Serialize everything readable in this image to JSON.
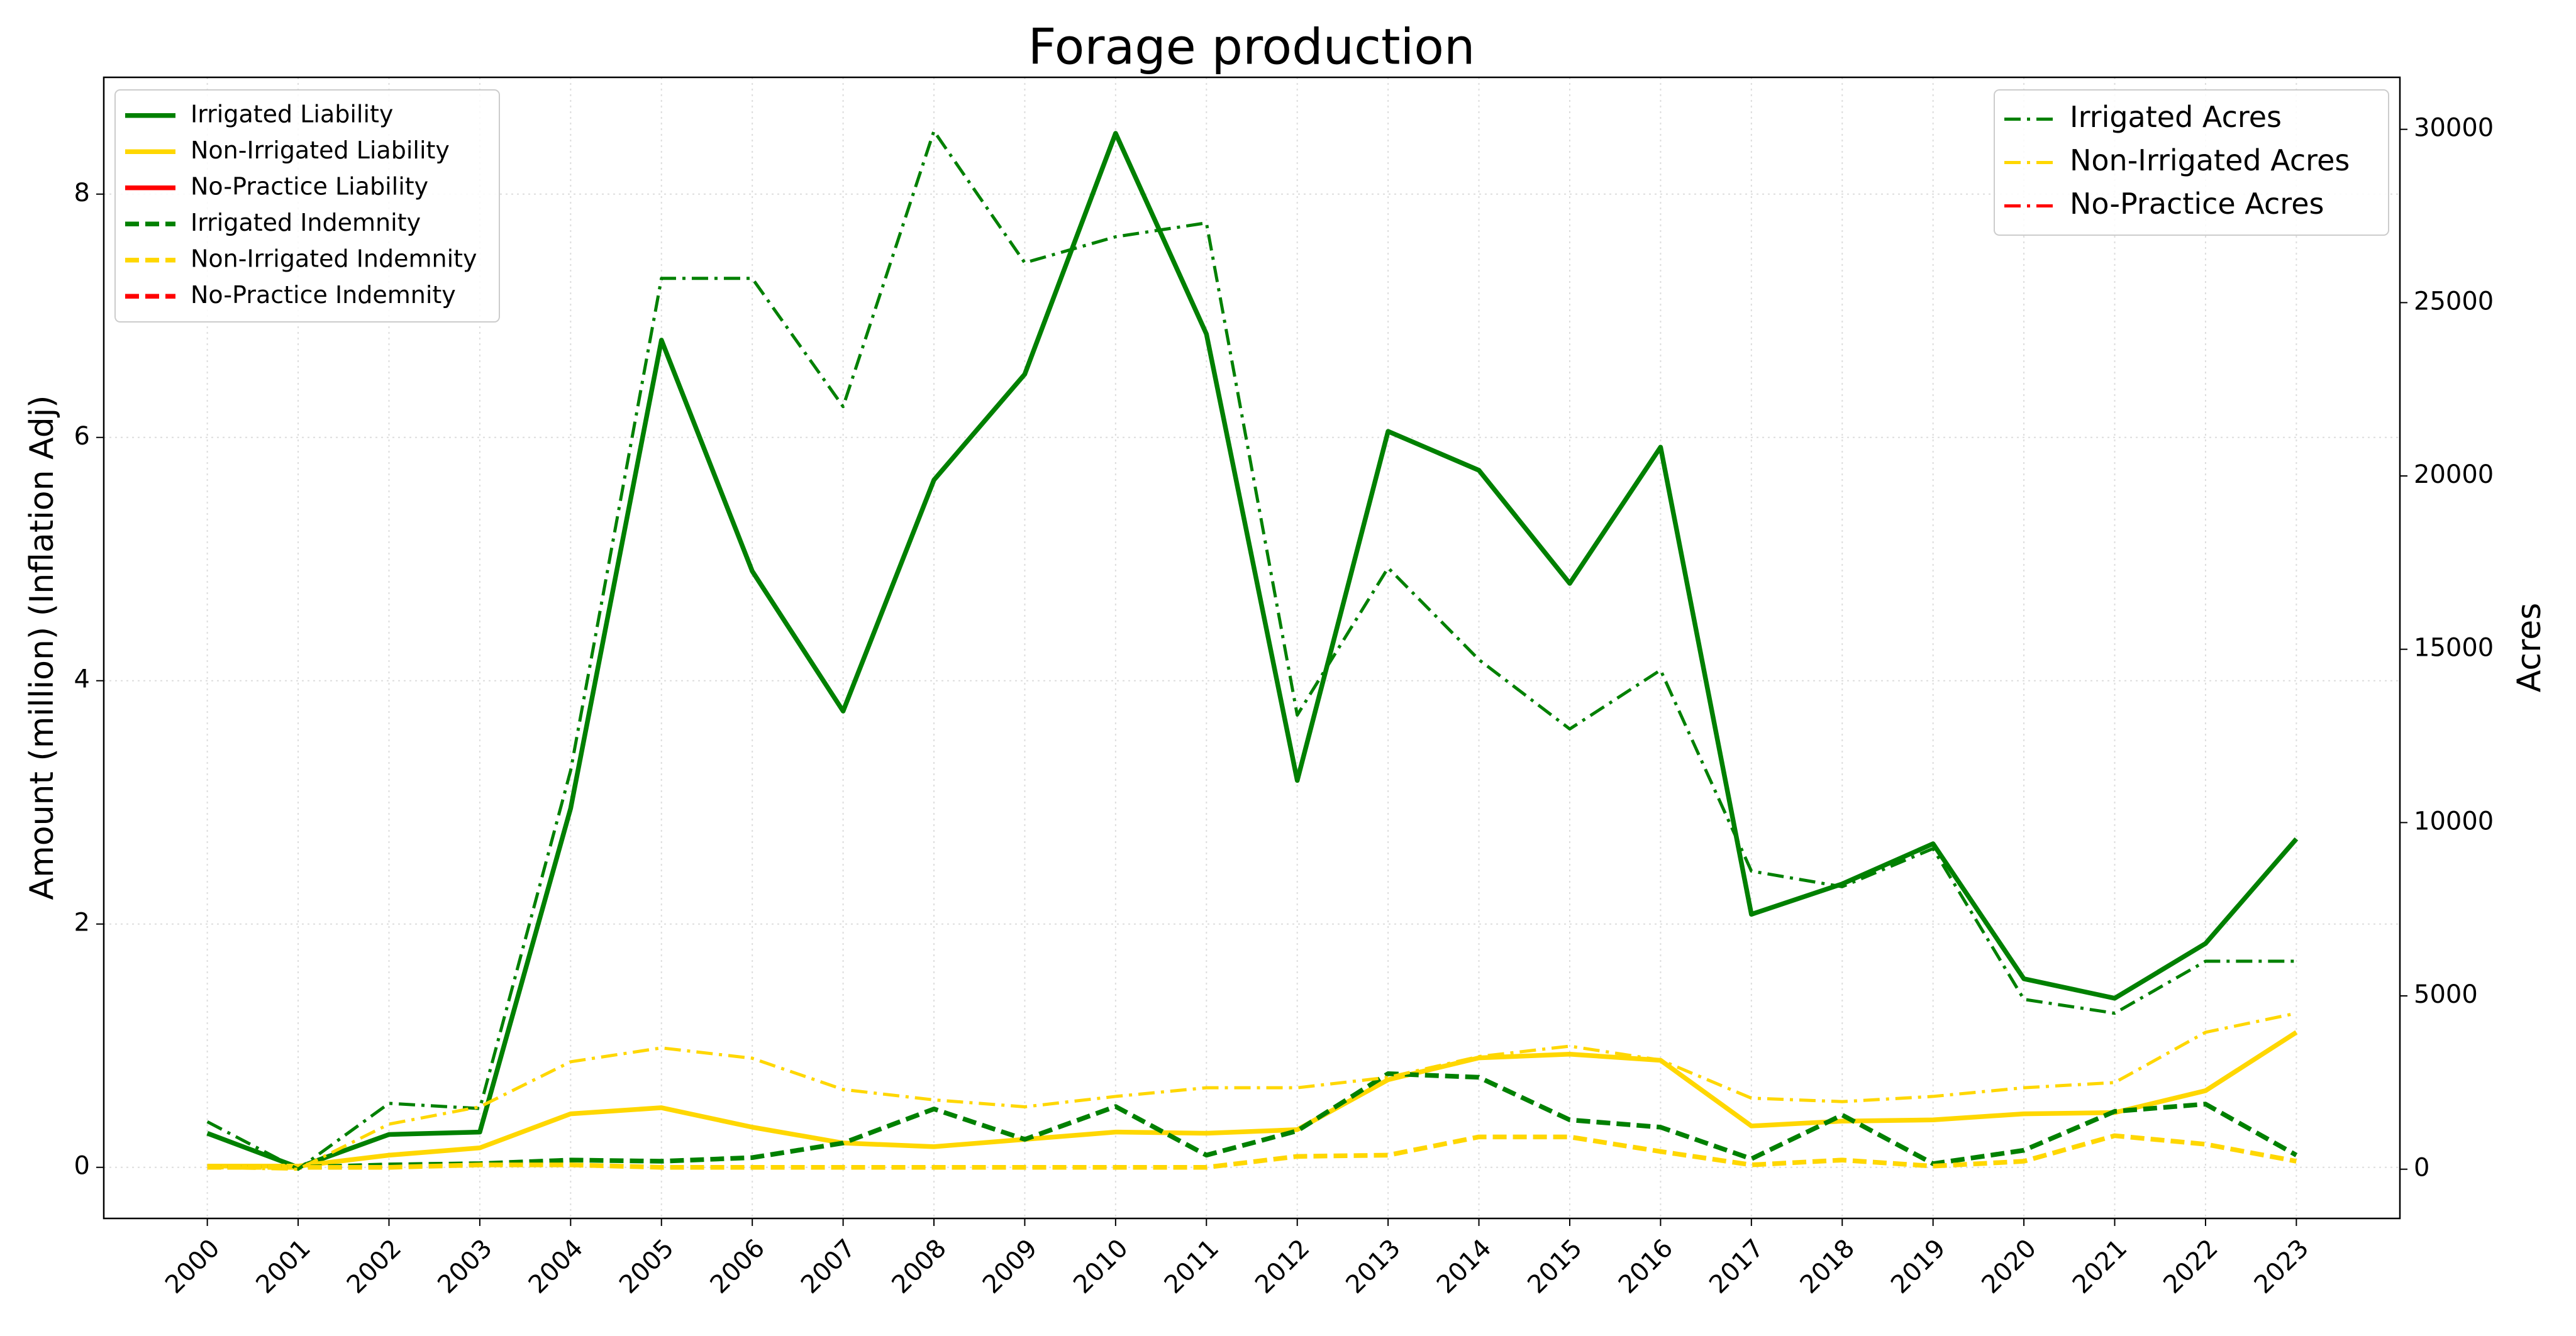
{
  "chart_data": {
    "type": "line",
    "title": "Forage production",
    "ylabel": "Amount (million) (Inflation Adj)",
    "y2label": "Acres",
    "categories": [
      "2000",
      "2001",
      "2002",
      "2003",
      "2004",
      "2005",
      "2006",
      "2007",
      "2008",
      "2009",
      "2010",
      "2011",
      "2012",
      "2013",
      "2014",
      "2015",
      "2016",
      "2017",
      "2018",
      "2019",
      "2020",
      "2021",
      "2022",
      "2023"
    ],
    "ylim": [
      -0.42,
      8.96
    ],
    "yticks": [
      0,
      2,
      4,
      6,
      8
    ],
    "y2lim": [
      -1420,
      31500
    ],
    "y2ticks": [
      0,
      5000,
      10000,
      15000,
      20000,
      25000,
      30000
    ],
    "grid": true,
    "legend": "upper left",
    "legend2": "upper right",
    "series": [
      {
        "name": "Irrigated Liability",
        "color": "#008000",
        "style": "solid",
        "values": [
          0.28,
          0.0,
          0.27,
          0.29,
          2.95,
          6.8,
          4.9,
          3.75,
          5.65,
          6.52,
          8.5,
          6.85,
          3.18,
          6.05,
          5.73,
          4.8,
          5.92,
          2.08,
          2.33,
          2.66,
          1.55,
          1.39,
          1.84,
          2.7
        ]
      },
      {
        "name": "Non-Irrigated Liability",
        "color": "#ffd700",
        "style": "solid",
        "values": [
          0.01,
          0.01,
          0.1,
          0.16,
          0.44,
          0.49,
          0.33,
          0.2,
          0.17,
          0.23,
          0.29,
          0.28,
          0.31,
          0.72,
          0.9,
          0.93,
          0.88,
          0.34,
          0.38,
          0.39,
          0.44,
          0.45,
          0.63,
          1.11
        ]
      },
      {
        "name": "No-Practice Liability",
        "color": "#ff0000",
        "style": "solid",
        "values": [
          null,
          null,
          null,
          null,
          null,
          null,
          null,
          null,
          null,
          null,
          null,
          null,
          null,
          null,
          null,
          null,
          null,
          null,
          null,
          null,
          null,
          null,
          null,
          null
        ]
      },
      {
        "name": "Irrigated Indemnity",
        "color": "#008000",
        "style": "dashed",
        "values": [
          0.0,
          0.0,
          0.02,
          0.03,
          0.06,
          0.05,
          0.08,
          0.2,
          0.48,
          0.23,
          0.5,
          0.1,
          0.3,
          0.77,
          0.74,
          0.39,
          0.33,
          0.07,
          0.43,
          0.03,
          0.14,
          0.46,
          0.52,
          0.1
        ]
      },
      {
        "name": "Non-Irrigated Indemnity",
        "color": "#ffd700",
        "style": "dashed",
        "values": [
          0,
          0,
          0,
          0.02,
          0.02,
          0,
          0,
          0,
          0,
          0,
          0,
          0,
          0.09,
          0.1,
          0.25,
          0.25,
          0.13,
          0.02,
          0.06,
          0.01,
          0.05,
          0.26,
          0.19,
          0.05
        ]
      },
      {
        "name": "No-Practice Indemnity",
        "color": "#ff0000",
        "style": "dashed",
        "values": [
          null,
          null,
          null,
          null,
          null,
          null,
          null,
          null,
          null,
          null,
          null,
          null,
          null,
          null,
          null,
          null,
          null,
          null,
          null,
          null,
          null,
          null,
          null,
          null
        ]
      },
      {
        "name": "Irrigated Acres",
        "color": "#008000",
        "style": "dashdot",
        "axis": "y2",
        "values": [
          1370,
          0,
          1900,
          1750,
          11500,
          25700,
          25700,
          22000,
          29950,
          26150,
          26900,
          27300,
          13100,
          17350,
          14700,
          12700,
          14400,
          8600,
          8150,
          9250,
          4900,
          4500,
          6000,
          6000
        ]
      },
      {
        "name": "Non-Irrigated Acres",
        "color": "#ffd700",
        "style": "dashdot",
        "axis": "y2",
        "values": [
          50,
          0,
          1300,
          1800,
          3100,
          3500,
          3200,
          2300,
          2000,
          1800,
          2100,
          2350,
          2350,
          2650,
          3250,
          3550,
          3150,
          2050,
          1950,
          2100,
          2350,
          2500,
          3950,
          4500
        ]
      },
      {
        "name": "No-Practice Acres",
        "color": "#ff0000",
        "style": "dashdot",
        "axis": "y2",
        "values": [
          null,
          null,
          null,
          null,
          null,
          null,
          null,
          null,
          null,
          null,
          null,
          null,
          null,
          null,
          null,
          null,
          null,
          null,
          null,
          null,
          null,
          null,
          null,
          null
        ]
      }
    ]
  }
}
